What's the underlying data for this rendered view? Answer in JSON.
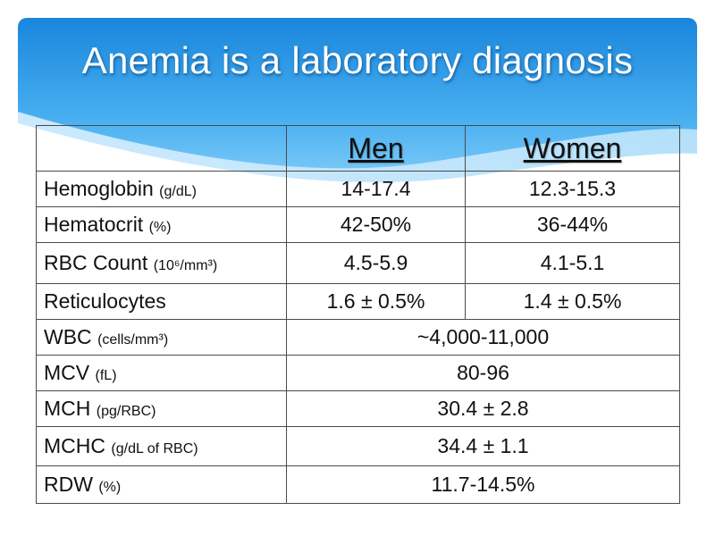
{
  "slide": {
    "title": "Anemia is a laboratory diagnosis",
    "theme_colors": {
      "banner_top": "#1e8fe0",
      "banner_light": "#8ed2fa",
      "text": "#111111",
      "border": "#4a4a4a"
    }
  },
  "table": {
    "header": {
      "corner": "",
      "men": "Men",
      "women": "Women"
    },
    "rows": [
      {
        "param": "Hemoglobin",
        "unit": "(g/dL)",
        "men": "14-17.4",
        "women": "12.3-15.3"
      },
      {
        "param": "Hematocrit",
        "unit": "(%)",
        "men": "42-50%",
        "women": "36-44%"
      },
      {
        "param": "RBC Count",
        "unit": "(10⁶/mm³)",
        "men": "4.5-5.9",
        "women": "4.1-5.1"
      },
      {
        "param": "Reticulocytes",
        "unit": "",
        "men": "1.6 ± 0.5%",
        "women": "1.4 ± 0.5%"
      },
      {
        "param": "WBC",
        "unit": "(cells/mm³)",
        "both": "~4,000-11,000"
      },
      {
        "param": "MCV",
        "unit": "(fL)",
        "both": "80-96"
      },
      {
        "param": "MCH",
        "unit": "(pg/RBC)",
        "both": "30.4 ± 2.8"
      },
      {
        "param": "MCHC",
        "unit": "(g/dL of RBC)",
        "both": "34.4 ± 1.1"
      },
      {
        "param": "RDW",
        "unit": "(%)",
        "both": "11.7-14.5%"
      }
    ]
  }
}
